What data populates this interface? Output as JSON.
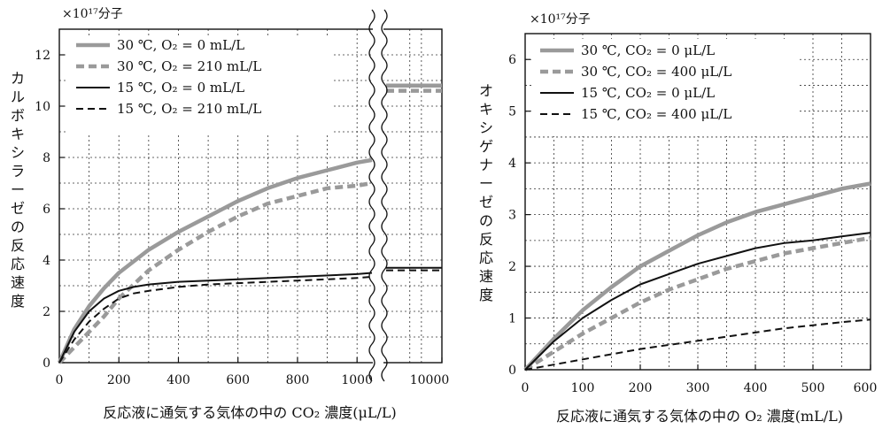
{
  "chart_data": [
    {
      "type": "line",
      "ylabel": "カルボキシラーゼの反応速度",
      "yunit": "×10¹⁷分子",
      "xlabel": "反応液に通気する気体の中の CO₂ 濃度(μL/L)",
      "ylim": [
        0,
        13
      ],
      "yticks": [
        "0",
        "2",
        "4",
        "6",
        "8",
        "10",
        "12"
      ],
      "xlim": [
        0,
        10000
      ],
      "xticks": [
        "0",
        "200",
        "400",
        "600",
        "800",
        "1000",
        "10000"
      ],
      "axis_break": "between 1050 and 10000 (wavy double line)",
      "grid": true,
      "legend_position": "top-left",
      "series": [
        {
          "name": "30 ℃, O₂ = 0 mL/L",
          "style": "thick-gray",
          "x": [
            0,
            50,
            100,
            150,
            200,
            300,
            400,
            500,
            600,
            700,
            800,
            900,
            1000,
            1050,
            10000
          ],
          "y": [
            0,
            1.3,
            2.2,
            2.9,
            3.5,
            4.4,
            5.1,
            5.7,
            6.3,
            6.8,
            7.2,
            7.5,
            7.8,
            7.9,
            10.8
          ]
        },
        {
          "name": "30 ℃, O₂ = 210 mL/L",
          "style": "thick-gray-dashed",
          "x": [
            0,
            50,
            100,
            150,
            200,
            300,
            400,
            500,
            600,
            700,
            800,
            900,
            1000,
            1050,
            10000
          ],
          "y": [
            0,
            0.6,
            1.2,
            1.8,
            2.5,
            3.6,
            4.4,
            5.1,
            5.7,
            6.2,
            6.5,
            6.8,
            6.9,
            7.0,
            10.6
          ]
        },
        {
          "name": "15 ℃, O₂ = 0 mL/L",
          "style": "solid-black",
          "x": [
            0,
            50,
            100,
            150,
            200,
            250,
            300,
            400,
            500,
            600,
            800,
            1000,
            1050,
            10000
          ],
          "y": [
            0,
            1.2,
            2.0,
            2.5,
            2.8,
            2.95,
            3.05,
            3.15,
            3.2,
            3.25,
            3.35,
            3.45,
            3.5,
            3.7
          ]
        },
        {
          "name": "15 ℃, O₂ = 210 mL/L",
          "style": "dashed-black",
          "x": [
            0,
            50,
            100,
            150,
            200,
            250,
            300,
            400,
            500,
            600,
            800,
            1000,
            1050,
            10000
          ],
          "y": [
            0,
            0.9,
            1.6,
            2.1,
            2.5,
            2.7,
            2.8,
            2.95,
            3.05,
            3.1,
            3.2,
            3.3,
            3.35,
            3.6
          ]
        }
      ]
    },
    {
      "type": "line",
      "ylabel": "オキシゲナーゼの反応速度",
      "yunit": "×10¹⁷分子",
      "xlabel": "反応液に通気する気体の中の O₂ 濃度(mL/L)",
      "ylim": [
        0,
        6.5
      ],
      "yticks": [
        "0",
        "1",
        "2",
        "3",
        "4",
        "5",
        "6"
      ],
      "xlim": [
        0,
        600
      ],
      "xticks": [
        "0",
        "100",
        "200",
        "300",
        "400",
        "500",
        "600"
      ],
      "grid": true,
      "legend_position": "top-left",
      "series": [
        {
          "name": "30 ℃, CO₂ = 0 μL/L",
          "style": "thick-gray",
          "x": [
            0,
            50,
            100,
            150,
            200,
            250,
            300,
            350,
            400,
            450,
            500,
            550,
            600
          ],
          "y": [
            0,
            0.6,
            1.15,
            1.6,
            2.0,
            2.3,
            2.6,
            2.85,
            3.05,
            3.2,
            3.35,
            3.5,
            3.6
          ]
        },
        {
          "name": "30 ℃, CO₂ = 400 μL/L",
          "style": "thick-gray-dashed",
          "x": [
            0,
            50,
            100,
            150,
            200,
            250,
            300,
            350,
            400,
            450,
            500,
            550,
            600
          ],
          "y": [
            0,
            0.35,
            0.7,
            1.0,
            1.3,
            1.55,
            1.75,
            1.95,
            2.1,
            2.25,
            2.35,
            2.45,
            2.55
          ]
        },
        {
          "name": "15 ℃, CO₂ = 0 μL/L",
          "style": "solid-black",
          "x": [
            0,
            50,
            100,
            150,
            200,
            250,
            300,
            350,
            400,
            450,
            500,
            550,
            600
          ],
          "y": [
            0,
            0.55,
            1.0,
            1.35,
            1.65,
            1.85,
            2.05,
            2.2,
            2.35,
            2.45,
            2.5,
            2.58,
            2.65
          ]
        },
        {
          "name": "15 ℃, CO₂ = 400 μL/L",
          "style": "dashed-black",
          "x": [
            0,
            50,
            100,
            150,
            200,
            250,
            300,
            350,
            400,
            450,
            500,
            550,
            600
          ],
          "y": [
            0,
            0.1,
            0.2,
            0.3,
            0.4,
            0.48,
            0.56,
            0.64,
            0.72,
            0.8,
            0.86,
            0.92,
            0.97
          ]
        }
      ]
    }
  ]
}
